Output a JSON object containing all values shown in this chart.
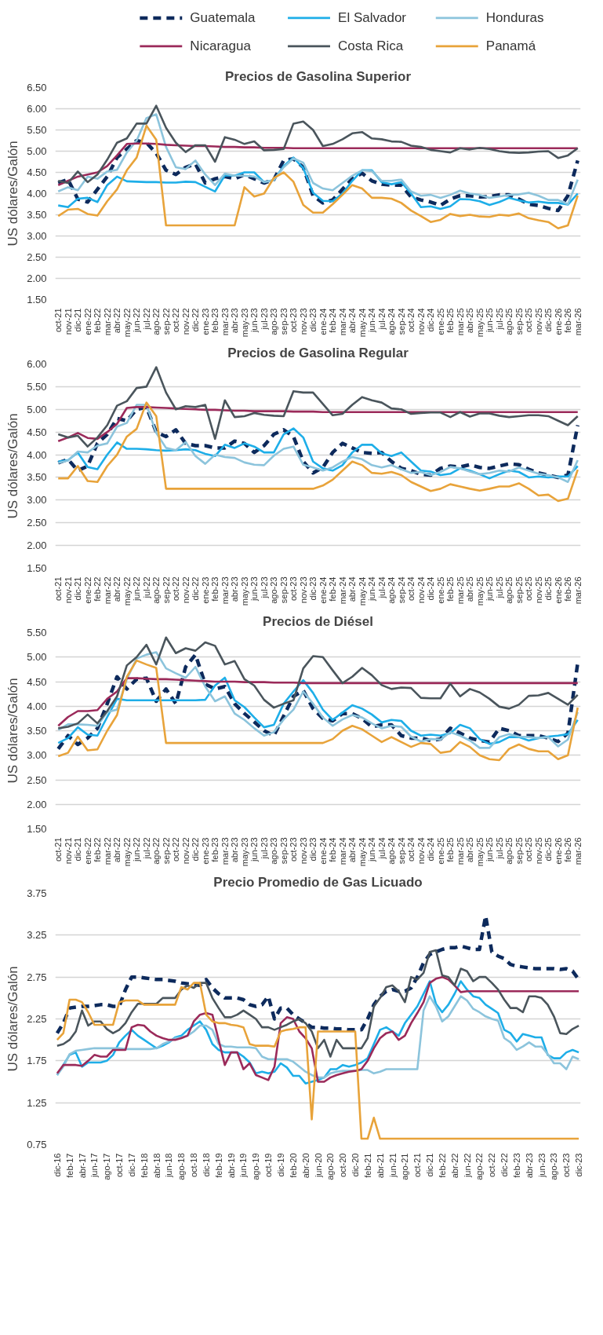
{
  "chart_data": [
    {
      "type": "line",
      "title": "Precios de Gasolina Superior",
      "ylabel": "US dólares/Galón",
      "legend": "top",
      "grid": "y",
      "categories": [
        "oct-21",
        "nov-21",
        "dic-21",
        "ene-22",
        "feb-22",
        "mar-22",
        "abr-22",
        "may-22",
        "jun-22",
        "jul-22",
        "ago-22",
        "sep-22",
        "oct-22",
        "nov-22",
        "dic-22",
        "ene-23",
        "feb-23",
        "mar-23",
        "abr-23",
        "may-23",
        "jun-23",
        "jul-23",
        "ago-23",
        "sep-23",
        "oct-23",
        "nov-23",
        "dic-23",
        "ene-24",
        "feb-24",
        "mar-24",
        "abr-24",
        "may-24",
        "jun-24",
        "jul-24",
        "ago-24",
        "sep-24",
        "oct-24",
        "nov-24",
        "dic-24",
        "ene-25",
        "feb-25",
        "mar-25",
        "abr-25",
        "may-25",
        "jun-25",
        "jul-25",
        "ago-25",
        "sep-25",
        "oct-25",
        "nov-25",
        "dic-25",
        "ene-26",
        "feb-26",
        "mar-26"
      ],
      "ylim": [
        1.5,
        6.5
      ],
      "yticks": [
        {
          "value": 1.5,
          "label": "1.50"
        },
        {
          "value": 2,
          "label": "2.00"
        },
        {
          "value": 2.5,
          "label": "2.50"
        },
        {
          "value": 3,
          "label": "3.00"
        },
        {
          "value": 3.5,
          "label": "3.50"
        },
        {
          "value": 4,
          "label": "4.00"
        },
        {
          "value": 4.5,
          "label": "4.50"
        },
        {
          "value": 5,
          "label": "5.00"
        },
        {
          "value": 5.5,
          "label": "5.50"
        },
        {
          "value": 6,
          "label": "6.00"
        },
        {
          "value": 6.5,
          "label": "6.50"
        }
      ],
      "series": [
        {
          "name": "Guatemala",
          "color": "#0d2a5c",
          "line_style": "dashed",
          "values": [
            4.25,
            4.33,
            3.87,
            3.8,
            4.1,
            4.4,
            4.85,
            5.05,
            5.25,
            5.2,
            4.95,
            4.55,
            4.45,
            4.62,
            4.7,
            4.25,
            4.35,
            4.4,
            4.35,
            4.45,
            4.35,
            4.25,
            4.33,
            4.78,
            4.82,
            4.62,
            3.95,
            3.78,
            3.85,
            4.1,
            4.35,
            4.48,
            4.3,
            4.22,
            4.2,
            4.2,
            3.92,
            3.85,
            3.8,
            3.72,
            3.87,
            3.95,
            3.95,
            3.92,
            3.93,
            3.97,
            3.97,
            3.87,
            3.75,
            3.72,
            3.65,
            3.6,
            3.95,
            4.78
          ]
        },
        {
          "name": "El Salvador",
          "color": "#1eaee8",
          "line_style": "solid",
          "values": [
            3.72,
            3.68,
            3.88,
            3.9,
            3.8,
            4.2,
            4.4,
            4.29,
            4.28,
            4.27,
            4.27,
            4.26,
            4.26,
            4.28,
            4.27,
            4.16,
            4.05,
            4.43,
            4.42,
            4.5,
            4.5,
            4.27,
            4.32,
            4.65,
            4.85,
            4.6,
            4.02,
            3.83,
            3.82,
            4.0,
            4.3,
            4.55,
            4.55,
            4.27,
            4.22,
            4.27,
            4.0,
            3.68,
            3.7,
            3.64,
            3.7,
            3.87,
            3.86,
            3.82,
            3.73,
            3.8,
            3.9,
            3.84,
            3.79,
            3.81,
            3.78,
            3.78,
            3.74,
            4.0
          ]
        },
        {
          "name": "Honduras",
          "color": "#8cc4dc",
          "line_style": "solid",
          "values": [
            4.05,
            4.15,
            4.08,
            4.4,
            4.35,
            4.52,
            4.56,
            4.97,
            5.25,
            5.78,
            5.87,
            5.1,
            4.62,
            4.58,
            4.78,
            4.45,
            4.2,
            4.47,
            4.42,
            4.42,
            4.4,
            4.27,
            4.32,
            4.62,
            4.83,
            4.73,
            4.25,
            4.12,
            4.08,
            4.25,
            4.42,
            4.55,
            4.53,
            4.3,
            4.3,
            4.33,
            4.05,
            3.95,
            3.97,
            3.9,
            3.97,
            4.07,
            4.0,
            3.97,
            3.9,
            3.93,
            3.97,
            3.98,
            4.02,
            3.95,
            3.85,
            3.85,
            3.75,
            4.33
          ]
        },
        {
          "name": "Nicaragua",
          "color": "#9b2a5a",
          "line_style": "solid",
          "values": [
            4.2,
            4.3,
            4.4,
            4.45,
            4.5,
            4.65,
            4.9,
            5.17,
            5.18,
            5.18,
            5.17,
            5.15,
            5.14,
            5.13,
            5.12,
            5.12,
            5.11,
            5.1,
            5.1,
            5.09,
            5.09,
            5.08,
            5.08,
            5.08,
            5.07,
            5.07,
            5.07,
            5.07,
            5.07,
            5.07,
            5.07,
            5.07,
            5.07,
            5.07,
            5.07,
            5.07,
            5.07,
            5.07,
            5.07,
            5.07,
            5.07,
            5.07,
            5.07,
            5.07,
            5.07,
            5.07,
            5.07,
            5.07,
            5.07,
            5.07,
            5.07,
            5.07,
            5.07,
            5.07
          ]
        },
        {
          "name": "Costa Rica",
          "color": "#4a555c",
          "line_style": "solid",
          "values": [
            4.3,
            4.25,
            4.52,
            4.27,
            4.45,
            4.8,
            5.2,
            5.3,
            5.65,
            5.65,
            6.07,
            5.55,
            5.2,
            4.98,
            5.14,
            5.14,
            4.75,
            5.33,
            5.27,
            5.17,
            5.23,
            5.02,
            5.03,
            5.05,
            5.65,
            5.7,
            5.5,
            5.12,
            5.17,
            5.28,
            5.42,
            5.45,
            5.3,
            5.28,
            5.23,
            5.22,
            5.13,
            5.1,
            5.03,
            5.0,
            4.97,
            5.07,
            5.04,
            5.08,
            5.05,
            5.0,
            4.97,
            4.96,
            4.97,
            4.99,
            5.0,
            4.84,
            4.9,
            5.07
          ]
        },
        {
          "name": "Panamá",
          "color": "#e8a33a",
          "line_style": "solid",
          "values": [
            3.47,
            3.62,
            3.64,
            3.52,
            3.48,
            3.82,
            4.1,
            4.55,
            4.85,
            5.6,
            5.27,
            3.25,
            3.25,
            3.25,
            3.25,
            3.25,
            3.25,
            3.25,
            3.25,
            4.15,
            3.93,
            4.0,
            4.37,
            4.5,
            4.28,
            3.73,
            3.55,
            3.55,
            3.75,
            3.97,
            4.2,
            4.12,
            3.9,
            3.9,
            3.88,
            3.78,
            3.6,
            3.47,
            3.33,
            3.38,
            3.52,
            3.47,
            3.5,
            3.46,
            3.45,
            3.5,
            3.48,
            3.53,
            3.42,
            3.37,
            3.33,
            3.18,
            3.25,
            3.95
          ]
        }
      ]
    },
    {
      "type": "line",
      "title": "Precios de Gasolina Regular",
      "ylabel": "US dólares/Galón",
      "grid": "y",
      "categories": [
        "oct-21",
        "nov-21",
        "dic-21",
        "ene-22",
        "feb-22",
        "mar-22",
        "abr-22",
        "may-22",
        "jun-22",
        "jul-22",
        "ago-22",
        "sep-22",
        "oct-22",
        "nov-22",
        "dic-22",
        "ene-23",
        "feb-23",
        "mar-23",
        "abr-23",
        "may-23",
        "jun-23",
        "jul-23",
        "ago-23",
        "sep-23",
        "oct-23",
        "nov-23",
        "dic-23",
        "ene-24",
        "feb-24",
        "mar-24",
        "abr-24",
        "may-24",
        "jun-24",
        "jul-24",
        "ago-24",
        "sep-24",
        "oct-24",
        "nov-24",
        "dic-24",
        "ene-25",
        "feb-25",
        "mar-25",
        "abr-25",
        "may-25",
        "jun-25",
        "jul-25",
        "ago-25",
        "sep-25",
        "oct-25",
        "nov-25",
        "dic-25",
        "ene-26",
        "feb-26",
        "mar-26"
      ],
      "ylim": [
        1.5,
        6.0
      ],
      "yticks": [
        {
          "value": 1.5,
          "label": "1.50"
        },
        {
          "value": 2,
          "label": "2.00"
        },
        {
          "value": 2.5,
          "label": "2.50"
        },
        {
          "value": 3,
          "label": "3.00"
        },
        {
          "value": 3.5,
          "label": "3.50"
        },
        {
          "value": 4,
          "label": "4.00"
        },
        {
          "value": 4.5,
          "label": "4.50"
        },
        {
          "value": 5,
          "label": "5.00"
        },
        {
          "value": 5.5,
          "label": "5.50"
        },
        {
          "value": 6,
          "label": "6.00"
        }
      ],
      "series": [
        {
          "color": "#0d2a5c",
          "line_style": "dashed",
          "values": [
            3.82,
            3.9,
            3.65,
            3.75,
            4.25,
            4.45,
            4.8,
            4.75,
            5.0,
            5.05,
            4.5,
            4.4,
            4.55,
            4.25,
            4.2,
            4.2,
            4.15,
            4.15,
            4.3,
            4.25,
            4.05,
            4.2,
            4.45,
            4.55,
            4.4,
            3.85,
            3.6,
            3.72,
            4.05,
            4.25,
            4.15,
            4.05,
            4.03,
            4.05,
            3.85,
            3.7,
            3.65,
            3.57,
            3.55,
            3.7,
            3.75,
            3.73,
            3.78,
            3.72,
            3.7,
            3.75,
            3.8,
            3.78,
            3.68,
            3.6,
            3.55,
            3.5,
            3.55,
            4.65
          ]
        },
        {
          "color": "#1eaee8",
          "line_style": "solid",
          "values": [
            3.85,
            3.88,
            4.05,
            3.73,
            3.68,
            4.0,
            4.27,
            4.13,
            4.13,
            4.12,
            4.1,
            4.09,
            4.1,
            4.12,
            4.1,
            4.02,
            3.97,
            4.22,
            4.15,
            4.25,
            4.18,
            4.05,
            4.05,
            4.45,
            4.58,
            4.38,
            3.85,
            3.7,
            3.65,
            3.77,
            4.05,
            4.22,
            4.22,
            4.03,
            3.97,
            4.05,
            3.85,
            3.65,
            3.63,
            3.55,
            3.58,
            3.7,
            3.65,
            3.57,
            3.48,
            3.57,
            3.65,
            3.62,
            3.5,
            3.52,
            3.5,
            3.52,
            3.52,
            3.75
          ]
        },
        {
          "color": "#8cc4dc",
          "line_style": "solid",
          "values": [
            3.82,
            3.87,
            4.07,
            4.05,
            4.2,
            4.25,
            4.62,
            4.7,
            5.1,
            5.1,
            4.48,
            4.15,
            4.1,
            4.28,
            3.97,
            3.8,
            4.0,
            3.95,
            3.93,
            3.83,
            3.78,
            3.77,
            3.98,
            4.13,
            4.18,
            3.78,
            3.72,
            3.65,
            3.72,
            3.85,
            3.95,
            3.9,
            3.77,
            3.72,
            3.77,
            3.68,
            3.6,
            3.62,
            3.55,
            3.62,
            3.73,
            3.7,
            3.63,
            3.57,
            3.6,
            3.65,
            3.63,
            3.72,
            3.65,
            3.58,
            3.55,
            3.5,
            3.4,
            3.88
          ]
        },
        {
          "color": "#9b2a5a",
          "line_style": "solid",
          "values": [
            4.3,
            4.38,
            4.48,
            4.37,
            4.35,
            4.5,
            4.68,
            5.03,
            5.05,
            5.05,
            5.04,
            5.03,
            5.02,
            5.01,
            5.0,
            4.99,
            4.99,
            4.98,
            4.97,
            4.97,
            4.96,
            4.96,
            4.96,
            4.96,
            4.95,
            4.95,
            4.95,
            4.94,
            4.94,
            4.94,
            4.94,
            4.94,
            4.94,
            4.94,
            4.94,
            4.94,
            4.94,
            4.94,
            4.94,
            4.94,
            4.94,
            4.94,
            4.94,
            4.94,
            4.94,
            4.94,
            4.94,
            4.94,
            4.94,
            4.94,
            4.94,
            4.94,
            4.94,
            4.94
          ]
        },
        {
          "color": "#4a555c",
          "line_style": "solid",
          "values": [
            4.45,
            4.38,
            4.42,
            4.18,
            4.38,
            4.65,
            5.08,
            5.18,
            5.47,
            5.5,
            5.93,
            5.37,
            5.0,
            5.07,
            5.05,
            5.1,
            4.35,
            5.2,
            4.83,
            4.85,
            4.92,
            4.88,
            4.86,
            4.85,
            5.4,
            5.37,
            5.37,
            5.12,
            4.87,
            4.9,
            5.1,
            5.27,
            5.2,
            5.15,
            5.02,
            5.0,
            4.9,
            4.92,
            4.93,
            4.93,
            4.83,
            4.94,
            4.84,
            4.91,
            4.91,
            4.86,
            4.83,
            4.85,
            4.87,
            4.87,
            4.85,
            4.75,
            4.65,
            4.85
          ]
        },
        {
          "color": "#e8a33a",
          "line_style": "solid",
          "values": [
            3.48,
            3.48,
            3.75,
            3.42,
            3.4,
            3.75,
            4.0,
            4.4,
            4.57,
            5.15,
            4.85,
            3.25,
            3.25,
            3.25,
            3.25,
            3.25,
            3.25,
            3.25,
            3.25,
            3.25,
            3.25,
            3.25,
            3.25,
            3.25,
            3.25,
            3.25,
            3.25,
            3.32,
            3.45,
            3.65,
            3.85,
            3.77,
            3.6,
            3.58,
            3.62,
            3.55,
            3.4,
            3.3,
            3.2,
            3.25,
            3.35,
            3.3,
            3.25,
            3.21,
            3.25,
            3.3,
            3.3,
            3.37,
            3.25,
            3.1,
            3.12,
            2.98,
            3.03,
            3.67
          ]
        }
      ]
    },
    {
      "type": "line",
      "title": "Precios de Diésel",
      "ylabel": "US dólares/Galón",
      "grid": "y",
      "categories": [
        "oct-21",
        "nov-21",
        "dic-21",
        "ene-22",
        "feb-22",
        "mar-22",
        "abr-22",
        "may-22",
        "jun-22",
        "jul-22",
        "ago-22",
        "sep-22",
        "oct-22",
        "nov-22",
        "dic-22",
        "ene-23",
        "feb-23",
        "mar-23",
        "abr-23",
        "may-23",
        "jun-23",
        "jul-23",
        "ago-23",
        "sep-23",
        "oct-23",
        "nov-23",
        "dic-23",
        "ene-24",
        "feb-24",
        "mar-24",
        "abr-24",
        "may-24",
        "jun-24",
        "jul-24",
        "ago-24",
        "sep-24",
        "oct-24",
        "nov-24",
        "dic-24",
        "ene-25",
        "feb-25",
        "mar-25",
        "abr-25",
        "may-25",
        "jun-25",
        "jul-25",
        "ago-25",
        "sep-25",
        "oct-25",
        "nov-25",
        "dic-25",
        "ene-26",
        "feb-26",
        "mar-26"
      ],
      "ylim": [
        1.5,
        5.5
      ],
      "yticks": [
        {
          "value": 1.5,
          "label": "1.50"
        },
        {
          "value": 2,
          "label": "2.00"
        },
        {
          "value": 2.5,
          "label": "2.50"
        },
        {
          "value": 3,
          "label": "3.00"
        },
        {
          "value": 3.5,
          "label": "3.50"
        },
        {
          "value": 4,
          "label": "4.00"
        },
        {
          "value": 4.5,
          "label": "4.50"
        },
        {
          "value": 5,
          "label": "5.00"
        },
        {
          "value": 5.5,
          "label": "5.50"
        }
      ],
      "series": [
        {
          "color": "#0d2a5c",
          "line_style": "dashed",
          "values": [
            3.13,
            3.4,
            3.22,
            3.35,
            3.55,
            4.05,
            4.6,
            4.35,
            4.55,
            4.57,
            4.1,
            4.35,
            4.05,
            4.8,
            5.05,
            4.45,
            4.35,
            4.4,
            4.05,
            3.85,
            3.68,
            3.5,
            3.4,
            3.8,
            4.2,
            4.32,
            3.95,
            3.75,
            3.7,
            3.85,
            3.85,
            3.75,
            3.58,
            3.62,
            3.62,
            3.4,
            3.35,
            3.35,
            3.3,
            3.33,
            3.55,
            3.45,
            3.35,
            3.3,
            3.27,
            3.55,
            3.5,
            3.4,
            3.4,
            3.4,
            3.35,
            3.28,
            3.45,
            4.88
          ]
        },
        {
          "color": "#1eaee8",
          "line_style": "solid",
          "values": [
            3.25,
            3.35,
            3.57,
            3.42,
            3.4,
            3.78,
            4.15,
            4.12,
            4.12,
            4.12,
            4.12,
            4.12,
            4.12,
            4.12,
            4.12,
            4.13,
            4.42,
            4.58,
            4.12,
            3.98,
            3.77,
            3.57,
            3.62,
            4.05,
            4.3,
            4.53,
            4.27,
            3.93,
            3.72,
            3.87,
            4.02,
            3.95,
            3.83,
            3.67,
            3.72,
            3.7,
            3.5,
            3.4,
            3.42,
            3.4,
            3.45,
            3.62,
            3.55,
            3.33,
            3.23,
            3.27,
            3.37,
            3.37,
            3.3,
            3.35,
            3.38,
            3.4,
            3.43,
            3.72
          ]
        },
        {
          "color": "#8cc4dc",
          "line_style": "solid",
          "values": [
            3.52,
            3.63,
            3.63,
            3.62,
            3.6,
            3.88,
            3.93,
            4.55,
            4.97,
            5.05,
            5.1,
            4.77,
            4.67,
            4.58,
            4.8,
            4.4,
            4.1,
            4.2,
            3.85,
            3.72,
            3.55,
            3.4,
            3.47,
            3.73,
            3.93,
            4.3,
            4.05,
            3.77,
            3.6,
            3.73,
            3.82,
            3.77,
            3.65,
            3.55,
            3.6,
            3.58,
            3.38,
            3.28,
            3.33,
            3.32,
            3.47,
            3.4,
            3.3,
            3.15,
            3.15,
            3.37,
            3.43,
            3.38,
            3.37,
            3.35,
            3.37,
            3.18,
            3.32,
            3.88
          ]
        },
        {
          "color": "#9b2a5a",
          "line_style": "solid",
          "values": [
            3.6,
            3.78,
            3.9,
            3.9,
            3.92,
            4.15,
            4.3,
            4.57,
            4.57,
            4.56,
            4.55,
            4.55,
            4.54,
            4.53,
            4.52,
            4.51,
            4.5,
            4.5,
            4.5,
            4.49,
            4.49,
            4.49,
            4.48,
            4.48,
            4.48,
            4.47,
            4.47,
            4.47,
            4.47,
            4.47,
            4.47,
            4.47,
            4.47,
            4.47,
            4.47,
            4.47,
            4.47,
            4.47,
            4.47,
            4.47,
            4.47,
            4.47,
            4.47,
            4.47,
            4.47,
            4.47,
            4.47,
            4.47,
            4.47,
            4.47,
            4.47,
            4.47,
            4.47,
            4.47
          ]
        },
        {
          "color": "#4a555c",
          "line_style": "solid",
          "values": [
            3.55,
            3.58,
            3.65,
            3.83,
            3.65,
            3.9,
            4.2,
            4.83,
            5.0,
            5.25,
            4.85,
            5.4,
            5.08,
            5.18,
            5.13,
            5.3,
            5.23,
            4.85,
            4.92,
            4.55,
            4.42,
            4.13,
            3.97,
            4.05,
            4.12,
            4.77,
            5.02,
            5.0,
            4.73,
            4.47,
            4.6,
            4.78,
            4.63,
            4.43,
            4.35,
            4.38,
            4.37,
            4.17,
            4.16,
            4.16,
            4.46,
            4.2,
            4.35,
            4.28,
            4.15,
            3.99,
            3.95,
            4.03,
            4.21,
            4.22,
            4.27,
            4.15,
            4.03,
            4.23
          ]
        },
        {
          "color": "#e8a33a",
          "line_style": "solid",
          "values": [
            2.98,
            3.05,
            3.38,
            3.1,
            3.12,
            3.5,
            3.82,
            4.6,
            4.93,
            4.85,
            4.78,
            3.25,
            3.25,
            3.25,
            3.25,
            3.25,
            3.25,
            3.25,
            3.25,
            3.25,
            3.25,
            3.25,
            3.25,
            3.25,
            3.25,
            3.25,
            3.25,
            3.25,
            3.33,
            3.5,
            3.6,
            3.53,
            3.4,
            3.27,
            3.37,
            3.27,
            3.17,
            3.25,
            3.23,
            3.05,
            3.08,
            3.27,
            3.17,
            3.0,
            2.92,
            2.9,
            3.13,
            3.22,
            3.13,
            3.08,
            3.08,
            2.92,
            3.0,
            3.97
          ]
        }
      ]
    },
    {
      "type": "line",
      "title": "Precio Promedio de Gas Licuado",
      "ylabel": "US dólares/Galón",
      "grid": "y",
      "categories": [
        "dic-16",
        null,
        "feb-17",
        null,
        "abr-17",
        null,
        "jun-17",
        null,
        "ago-17",
        null,
        "oct-17",
        null,
        "dic-17",
        null,
        "feb-18",
        null,
        "abr-18",
        null,
        "jun-18",
        null,
        "ago-18",
        null,
        "oct-18",
        null,
        "dic-18",
        null,
        "feb-19",
        null,
        "abr-19",
        null,
        "jun-19",
        null,
        "ago-19",
        null,
        "oct-19",
        null,
        "dic-19",
        null,
        "feb-20",
        null,
        "abr-20",
        null,
        "jun-20",
        null,
        "ago-20",
        null,
        "oct-20",
        null,
        "dic-20",
        null,
        "feb-21",
        null,
        "abr-21",
        null,
        "jun-21",
        null,
        "ago-21",
        null,
        "oct-21",
        null,
        "dic-21",
        null,
        "feb-22",
        null,
        "abr-22",
        null,
        "jun-22",
        null,
        "ago-22",
        null,
        "oct-22",
        null,
        "dic-22",
        null,
        "feb-23",
        null,
        "abr-23",
        null,
        "jun-23",
        null,
        "ago-23",
        null,
        "oct-23",
        null,
        "dic-23"
      ],
      "ylim": [
        0.75,
        3.75
      ],
      "yticks": [
        {
          "value": 0.75,
          "label": "0.75"
        },
        {
          "value": 1.25,
          "label": "1.25"
        },
        {
          "value": 1.75,
          "label": "1.75"
        },
        {
          "value": 2.25,
          "label": "2.25"
        },
        {
          "value": 2.75,
          "label": "2.75"
        },
        {
          "value": 3.25,
          "label": "3.25"
        },
        {
          "value": 3.75,
          "label": "3.75"
        }
      ],
      "series": [
        {
          "color": "#0d2a5c",
          "line_style": "dashed",
          "values": [
            2.08,
            2.2,
            2.38,
            2.39,
            2.4,
            2.4,
            2.41,
            2.42,
            2.42,
            2.4,
            2.4,
            2.6,
            2.75,
            2.75,
            2.74,
            2.73,
            2.72,
            2.72,
            2.71,
            2.7,
            2.68,
            2.67,
            2.66,
            2.65,
            2.72,
            2.62,
            2.55,
            2.5,
            2.5,
            2.5,
            2.48,
            2.42,
            2.4,
            2.42,
            2.52,
            2.25,
            2.38,
            2.38,
            2.3,
            2.25,
            2.2,
            2.15,
            2.15,
            2.14,
            2.14,
            2.13,
            2.13,
            2.12,
            2.12,
            2.12,
            2.25,
            2.42,
            2.52,
            2.58,
            2.6,
            2.58,
            2.58,
            2.62,
            2.75,
            2.92,
            3.02,
            3.05,
            3.08,
            3.1,
            3.1,
            3.12,
            3.1,
            3.08,
            3.08,
            3.48,
            3.05,
            3.0,
            2.97,
            2.9,
            2.88,
            2.87,
            2.86,
            2.85,
            2.85,
            2.85,
            2.85,
            2.84,
            2.85,
            2.82,
            2.72
          ]
        },
        {
          "color": "#1eaee8",
          "line_style": "solid",
          "values": [
            1.58,
            1.7,
            1.82,
            1.85,
            1.68,
            1.73,
            1.73,
            1.73,
            1.75,
            1.82,
            1.97,
            2.05,
            2.12,
            2.05,
            2.0,
            1.95,
            1.9,
            1.93,
            1.97,
            2.03,
            2.05,
            2.12,
            2.17,
            2.22,
            2.12,
            1.95,
            1.88,
            1.85,
            1.85,
            1.85,
            1.8,
            1.73,
            1.6,
            1.62,
            1.6,
            1.62,
            1.72,
            1.67,
            1.57,
            1.57,
            1.48,
            1.5,
            1.52,
            1.55,
            1.65,
            1.65,
            1.7,
            1.68,
            1.7,
            1.73,
            1.78,
            1.95,
            2.12,
            2.15,
            2.1,
            2.05,
            2.2,
            2.3,
            2.4,
            2.55,
            2.7,
            2.43,
            2.33,
            2.42,
            2.55,
            2.7,
            2.6,
            2.52,
            2.5,
            2.42,
            2.37,
            2.32,
            2.12,
            2.08,
            1.98,
            2.07,
            2.05,
            2.03,
            2.03,
            1.82,
            1.78,
            1.78,
            1.85,
            1.88,
            1.85
          ]
        },
        {
          "color": "#8cc4dc",
          "line_style": "solid",
          "values": [
            1.58,
            1.68,
            1.83,
            1.87,
            1.88,
            1.89,
            1.9,
            1.9,
            1.9,
            1.9,
            1.9,
            1.89,
            1.89,
            1.89,
            1.89,
            1.89,
            1.9,
            1.95,
            1.98,
            2.02,
            2.03,
            2.05,
            2.1,
            2.17,
            2.17,
            2.12,
            1.95,
            1.92,
            1.92,
            1.91,
            1.91,
            1.91,
            1.9,
            1.8,
            1.77,
            1.77,
            1.77,
            1.77,
            1.74,
            1.68,
            1.62,
            1.58,
            1.55,
            1.55,
            1.6,
            1.62,
            1.63,
            1.63,
            1.63,
            1.64,
            1.64,
            1.6,
            1.62,
            1.65,
            1.65,
            1.65,
            1.65,
            1.65,
            1.65,
            2.35,
            2.52,
            2.4,
            2.22,
            2.28,
            2.4,
            2.52,
            2.47,
            2.37,
            2.33,
            2.28,
            2.25,
            2.23,
            2.02,
            1.97,
            1.88,
            1.92,
            1.97,
            1.92,
            1.92,
            1.83,
            1.72,
            1.72,
            1.65,
            1.8,
            1.77
          ]
        },
        {
          "color": "#9b2a5a",
          "line_style": "solid",
          "values": [
            1.6,
            1.7,
            1.7,
            1.7,
            1.69,
            1.75,
            1.82,
            1.8,
            1.8,
            1.88,
            1.88,
            1.88,
            2.15,
            2.18,
            2.17,
            2.1,
            2.05,
            2.02,
            2.0,
            2.0,
            2.02,
            2.05,
            2.22,
            2.3,
            2.32,
            2.3,
            2.0,
            1.7,
            1.85,
            1.85,
            1.65,
            1.72,
            1.58,
            1.55,
            1.52,
            1.68,
            2.2,
            2.27,
            2.25,
            2.1,
            2.02,
            1.9,
            1.5,
            1.5,
            1.55,
            1.58,
            1.6,
            1.62,
            1.63,
            1.65,
            1.75,
            1.9,
            2.02,
            2.08,
            2.1,
            2.0,
            2.05,
            2.2,
            2.32,
            2.45,
            2.68,
            2.73,
            2.75,
            2.72,
            2.65,
            2.57,
            2.58,
            2.58,
            2.58,
            2.58,
            2.58,
            2.58,
            2.58,
            2.58,
            2.58,
            2.58,
            2.58,
            2.58,
            2.58,
            2.58,
            2.58,
            2.58,
            2.58,
            2.58,
            2.58
          ]
        },
        {
          "color": "#4a555c",
          "line_style": "solid",
          "values": [
            1.93,
            1.95,
            2.0,
            2.1,
            2.35,
            2.17,
            2.22,
            2.22,
            2.13,
            2.08,
            2.12,
            2.2,
            2.33,
            2.43,
            2.43,
            2.43,
            2.43,
            2.5,
            2.5,
            2.5,
            2.6,
            2.65,
            2.62,
            2.68,
            2.68,
            2.5,
            2.38,
            2.27,
            2.27,
            2.3,
            2.35,
            2.3,
            2.25,
            2.15,
            2.15,
            2.12,
            2.15,
            2.18,
            2.22,
            2.25,
            2.2,
            2.1,
            1.9,
            2.0,
            1.8,
            2.0,
            1.9,
            1.9,
            1.9,
            1.9,
            2.02,
            2.4,
            2.5,
            2.63,
            2.65,
            2.58,
            2.45,
            2.75,
            2.72,
            2.8,
            3.05,
            3.07,
            2.77,
            2.75,
            2.65,
            2.85,
            2.82,
            2.7,
            2.75,
            2.75,
            2.68,
            2.6,
            2.48,
            2.38,
            2.38,
            2.33,
            2.52,
            2.52,
            2.5,
            2.42,
            2.28,
            2.08,
            2.07,
            2.13,
            2.17
          ]
        },
        {
          "color": "#e8a33a",
          "line_style": "solid",
          "values": [
            2.0,
            2.08,
            2.48,
            2.48,
            2.45,
            2.33,
            2.18,
            2.18,
            2.18,
            2.18,
            2.45,
            2.47,
            2.47,
            2.47,
            2.42,
            2.42,
            2.42,
            2.42,
            2.42,
            2.42,
            2.63,
            2.6,
            2.68,
            2.68,
            2.3,
            2.22,
            2.2,
            2.2,
            2.18,
            2.17,
            2.15,
            1.95,
            1.93,
            1.93,
            1.93,
            1.92,
            2.1,
            2.12,
            2.13,
            2.15,
            2.15,
            1.05,
            2.1,
            2.1,
            2.1,
            2.1,
            2.1,
            2.1,
            2.1,
            0.82,
            0.82,
            1.07,
            0.82,
            0.82,
            0.82,
            0.82,
            0.82,
            0.82,
            0.82,
            0.82,
            0.82,
            0.82,
            0.82,
            0.82,
            0.82,
            0.82,
            0.82,
            0.82,
            0.82,
            0.82,
            0.82,
            0.82,
            0.82,
            0.82,
            0.82,
            0.82,
            0.82,
            0.82,
            0.82,
            0.82,
            0.82,
            0.82,
            0.82,
            0.82,
            0.82
          ]
        }
      ]
    }
  ]
}
